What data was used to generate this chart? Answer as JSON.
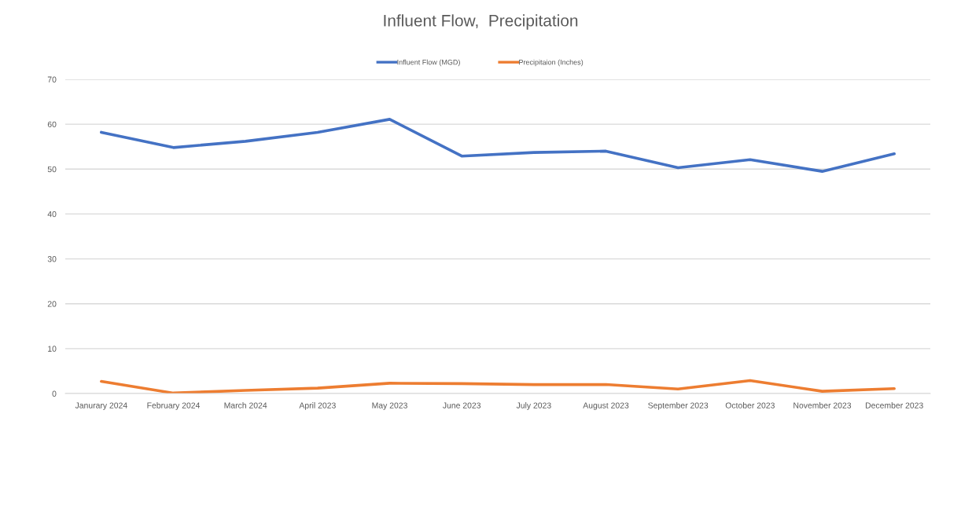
{
  "chart_data": {
    "type": "line",
    "title": "Influent Flow,  Precipitation",
    "categories": [
      "Janurary 2024",
      "February 2024",
      "March 2024",
      "April 2023",
      "May 2023",
      "June 2023",
      "July 2023",
      "August 2023",
      "September 2023",
      "October 2023",
      "November 2023",
      "December 2023"
    ],
    "series": [
      {
        "name": "Influent Flow (MGD)",
        "color": "#4472c4",
        "values": [
          58.2,
          54.8,
          56.2,
          58.2,
          61.1,
          52.9,
          53.7,
          54.0,
          50.3,
          52.1,
          49.5,
          53.4
        ]
      },
      {
        "name": "Precipitaion (Inches)",
        "color": "#ed7d31",
        "values": [
          2.7,
          0.1,
          0.7,
          1.2,
          2.3,
          2.2,
          2.0,
          2.0,
          1.0,
          2.9,
          0.5,
          1.1
        ]
      }
    ],
    "ylim": [
      0,
      70
    ],
    "yticks": [
      0,
      10,
      20,
      30,
      40,
      50,
      60,
      70
    ],
    "grid": "y",
    "legend": "top",
    "line_style": "solid"
  }
}
